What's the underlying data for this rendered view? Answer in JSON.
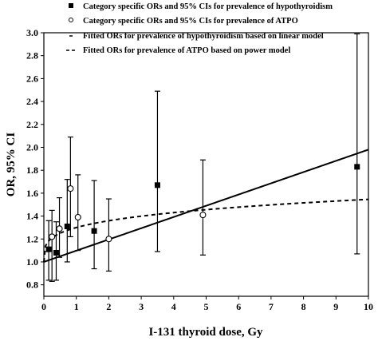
{
  "chart_data": {
    "type": "scatter",
    "xlabel": "I-131 thyroid dose, Gy",
    "ylabel": "OR, 95% CI",
    "xlim": [
      0,
      10
    ],
    "ylim": [
      0.7,
      3.0
    ],
    "x_ticks": [
      "0",
      "1",
      "2",
      "3",
      "4",
      "5",
      "6",
      "7",
      "8",
      "9",
      "10"
    ],
    "y_ticks": [
      "0.8",
      "1.0",
      "1.2",
      "1.4",
      "1.6",
      "1.8",
      "2.0",
      "2.2",
      "2.4",
      "2.6",
      "2.8",
      "3.0"
    ],
    "legend_position": "top",
    "legend": [
      "Category specific ORs and 95% CIs for prevalence of hypothyroidism",
      "Category specific ORs and 95% CIs for prevalence of ATPO",
      "Fitted ORs for prevalence of hypothyroidism based on linear model",
      "Fitted ORs for prevalence of ATPO based on power model"
    ],
    "series": [
      {
        "name": "Category specific ORs and 95% CIs for prevalence of hypothyroidism",
        "marker": "filled-square",
        "points": [
          {
            "x": 0.15,
            "y": 1.11,
            "lo": 0.84,
            "hi": 1.36
          },
          {
            "x": 0.38,
            "y": 1.08,
            "lo": 0.84,
            "hi": 1.35
          },
          {
            "x": 0.72,
            "y": 1.31,
            "lo": 1.0,
            "hi": 1.72
          },
          {
            "x": 1.55,
            "y": 1.27,
            "lo": 0.94,
            "hi": 1.71
          },
          {
            "x": 3.5,
            "y": 1.67,
            "lo": 1.09,
            "hi": 2.49
          },
          {
            "x": 9.65,
            "y": 1.83,
            "lo": 1.07,
            "hi": 2.99
          }
        ]
      },
      {
        "name": "Category specific ORs and 95% CIs for prevalence of ATPO",
        "marker": "open-circle",
        "points": [
          {
            "x": 0.25,
            "y": 1.22,
            "lo": 0.83,
            "hi": 1.45
          },
          {
            "x": 0.48,
            "y": 1.29,
            "lo": 1.04,
            "hi": 1.56
          },
          {
            "x": 0.82,
            "y": 1.64,
            "lo": 1.22,
            "hi": 2.09
          },
          {
            "x": 1.05,
            "y": 1.39,
            "lo": 1.1,
            "hi": 1.76
          },
          {
            "x": 2.0,
            "y": 1.2,
            "lo": 0.92,
            "hi": 1.55
          },
          {
            "x": 4.9,
            "y": 1.41,
            "lo": 1.06,
            "hi": 1.89
          }
        ]
      }
    ],
    "fits": [
      {
        "name": "Fitted ORs for prevalence of hypothyroidism based on linear model",
        "model": "linear",
        "style": "solid",
        "intercept": 1.0,
        "slope": 0.098
      },
      {
        "name": "Fitted ORs for prevalence of ATPO based on power model",
        "model": "power",
        "style": "dashed",
        "coefficient": 0.3,
        "exponent": 0.26
      }
    ]
  }
}
